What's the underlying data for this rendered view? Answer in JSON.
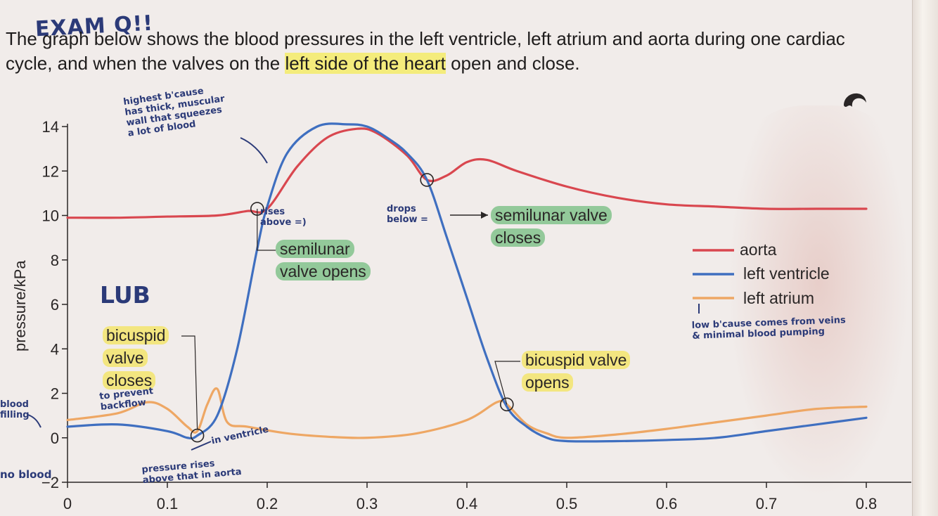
{
  "header": {
    "exam_note": "EXAM Q!!",
    "question_part1": "The graph below shows the blood pressures in the left ventricle, left atrium and aorta during one cardiac cycle, and when the valves on the ",
    "question_highlight": "left side of the heart",
    "question_part2": " open and close."
  },
  "annotations": {
    "semilunar_opens_line1": "semilunar",
    "semilunar_opens_line2": "valve opens",
    "semilunar_closes_line1": "semilunar valve",
    "semilunar_closes_line2": "closes",
    "bicuspid_closes_line1": "bicuspid",
    "bicuspid_closes_line2": "valve",
    "bicuspid_closes_line3": "closes",
    "bicuspid_opens_line1": "bicuspid valve",
    "bicuspid_opens_line2": "opens"
  },
  "handwritten": {
    "highest_1": "highest b'cause",
    "highest_2": "has thick, muscular",
    "highest_3": "wall that squeezes",
    "highest_4": "a lot of blood",
    "lub": "LUB",
    "rises_above": "rises above =)",
    "drops_below": "drops below =",
    "prevent_1": "to prevent",
    "prevent_2": "backflow",
    "in_ventricle": "in ventricle",
    "pressure_rises_1": "pressure rises",
    "pressure_rises_2": "above that in aorta",
    "blood_filling_1": "blood",
    "blood_filling_2": "filling",
    "no_blood": "no blood",
    "low_1": "low b'cause comes from veins",
    "low_2": "& minimal blood pumping"
  },
  "legend": {
    "aorta": "aorta",
    "left_ventricle": "left ventricle",
    "left_atrium": "left atrium"
  },
  "colors": {
    "aorta": "#d9474f",
    "left_ventricle": "#3f6fc0",
    "left_atrium": "#eea764",
    "highlight_yellow": "#f3e680",
    "highlight_green": "#93c99a",
    "ink": "#2b3a78"
  },
  "chart_data": {
    "type": "line",
    "xlabel": "",
    "ylabel": "pressure/kPa",
    "xlim": [
      0,
      0.8
    ],
    "ylim": [
      -2,
      14
    ],
    "x_ticks": [
      "0",
      "0.1",
      "0.2",
      "0.3",
      "0.4",
      "0.5",
      "0.6",
      "0.7",
      "0.8"
    ],
    "y_ticks": [
      "−2",
      "0",
      "2",
      "4",
      "6",
      "8",
      "10",
      "12",
      "14"
    ],
    "series": [
      {
        "name": "aorta",
        "x": [
          0,
          0.05,
          0.1,
          0.15,
          0.18,
          0.2,
          0.23,
          0.26,
          0.29,
          0.31,
          0.34,
          0.36,
          0.38,
          0.4,
          0.42,
          0.45,
          0.5,
          0.55,
          0.6,
          0.65,
          0.7,
          0.75,
          0.8
        ],
        "y": [
          9.9,
          9.9,
          9.95,
          10.0,
          10.2,
          10.3,
          12.2,
          13.5,
          13.9,
          13.7,
          12.7,
          11.6,
          11.8,
          12.4,
          12.5,
          12.0,
          11.3,
          10.8,
          10.5,
          10.4,
          10.3,
          10.3,
          10.3
        ]
      },
      {
        "name": "left ventricle",
        "x": [
          0,
          0.05,
          0.1,
          0.12,
          0.13,
          0.15,
          0.17,
          0.19,
          0.2,
          0.22,
          0.25,
          0.28,
          0.3,
          0.32,
          0.34,
          0.36,
          0.38,
          0.4,
          0.42,
          0.44,
          0.46,
          0.48,
          0.5,
          0.55,
          0.6,
          0.65,
          0.7,
          0.75,
          0.8
        ],
        "y": [
          0.5,
          0.6,
          0.3,
          0.0,
          0.1,
          1.0,
          4.0,
          8.5,
          10.4,
          12.8,
          14.0,
          14.1,
          14.0,
          13.5,
          12.8,
          11.6,
          9.0,
          6.3,
          3.6,
          1.4,
          0.5,
          0.0,
          -0.15,
          -0.15,
          -0.1,
          0.0,
          0.3,
          0.6,
          0.9
        ]
      },
      {
        "name": "left atrium",
        "x": [
          0,
          0.05,
          0.08,
          0.1,
          0.12,
          0.13,
          0.14,
          0.15,
          0.16,
          0.18,
          0.22,
          0.26,
          0.3,
          0.35,
          0.4,
          0.43,
          0.44,
          0.46,
          0.48,
          0.5,
          0.55,
          0.6,
          0.65,
          0.7,
          0.75,
          0.8
        ],
        "y": [
          0.8,
          1.1,
          1.6,
          1.3,
          0.5,
          0.3,
          1.5,
          2.2,
          0.7,
          0.5,
          0.2,
          0.05,
          0.0,
          0.2,
          0.8,
          1.6,
          1.5,
          0.6,
          0.2,
          0.0,
          0.15,
          0.4,
          0.7,
          1.0,
          1.3,
          1.4
        ]
      }
    ],
    "markers": [
      {
        "x": 0.13,
        "y": 0.1,
        "label": "bicuspid valve closes"
      },
      {
        "x": 0.19,
        "y": 10.3,
        "label": "semilunar valve opens"
      },
      {
        "x": 0.36,
        "y": 11.6,
        "label": "semilunar valve closes"
      },
      {
        "x": 0.44,
        "y": 1.5,
        "label": "bicuspid valve opens"
      }
    ],
    "grid": false,
    "legend_position": "right"
  }
}
